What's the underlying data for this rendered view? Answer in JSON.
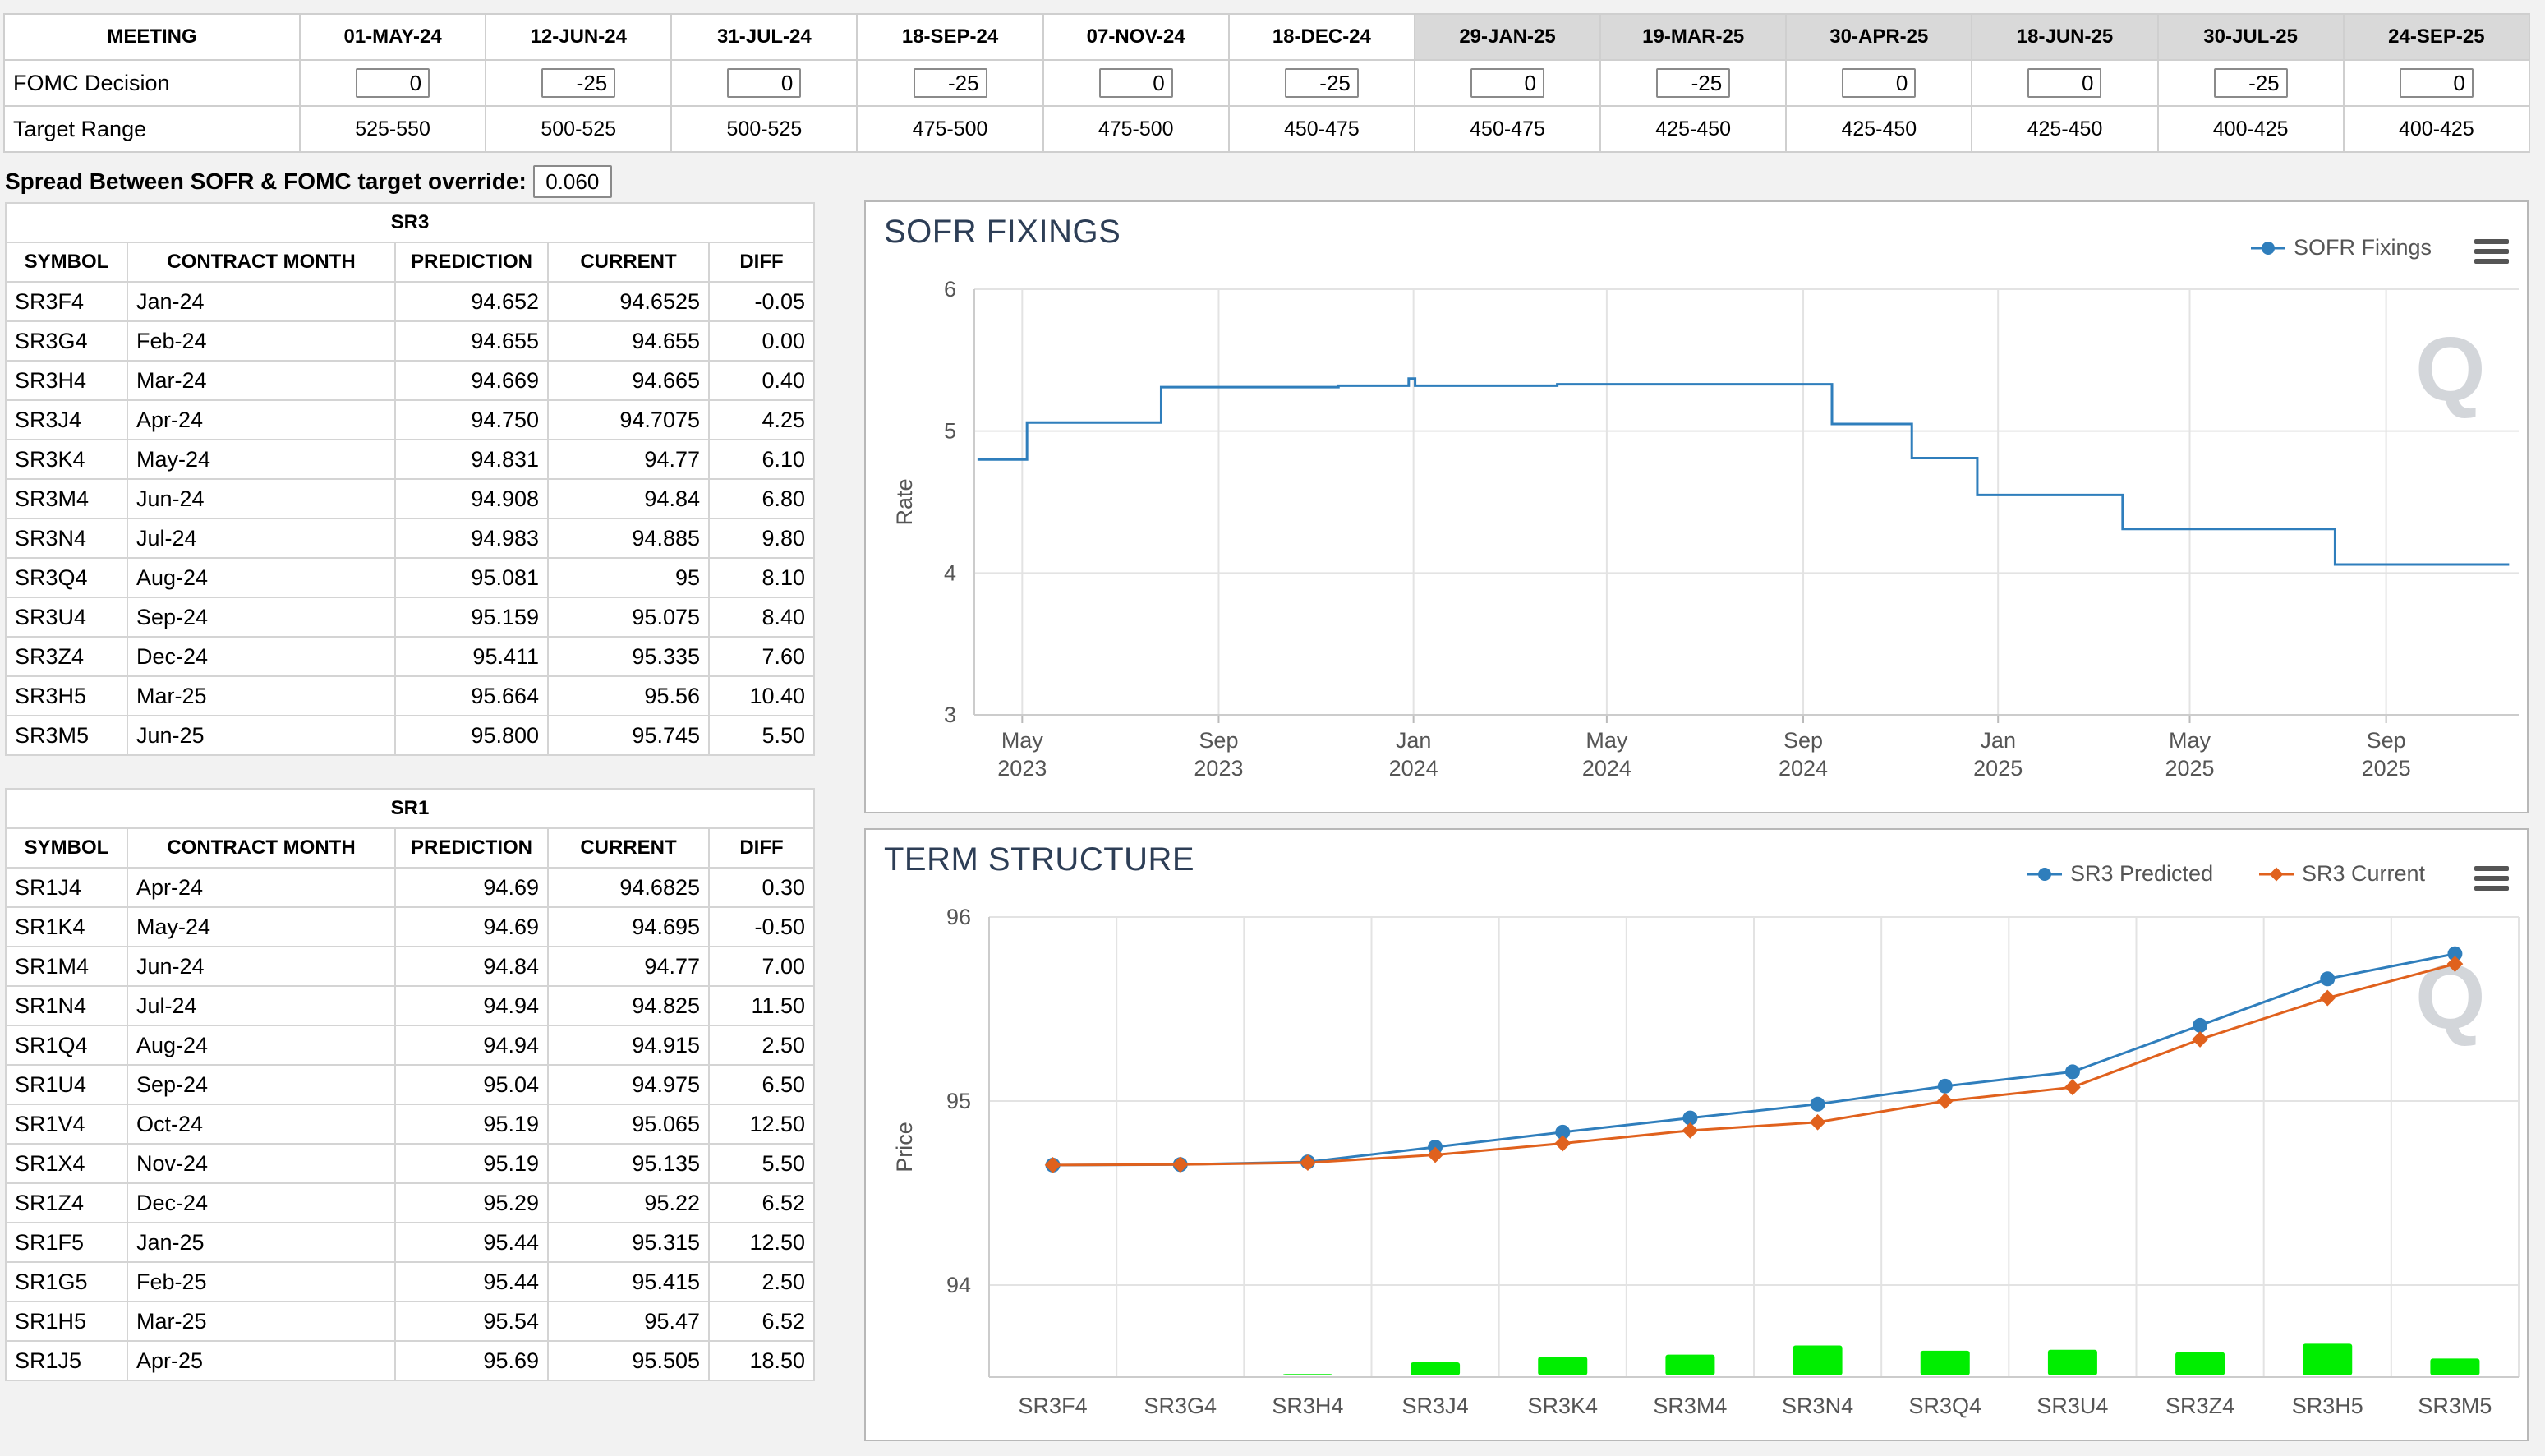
{
  "meetings": {
    "header_label": "MEETING",
    "row_decision_label": "FOMC Decision",
    "row_range_label": "Target Range",
    "columns": [
      {
        "date": "01-MAY-24",
        "decision": "0",
        "range": "525-550",
        "shaded": false
      },
      {
        "date": "12-JUN-24",
        "decision": "-25",
        "range": "500-525",
        "shaded": false
      },
      {
        "date": "31-JUL-24",
        "decision": "0",
        "range": "500-525",
        "shaded": false
      },
      {
        "date": "18-SEP-24",
        "decision": "-25",
        "range": "475-500",
        "shaded": false
      },
      {
        "date": "07-NOV-24",
        "decision": "0",
        "range": "475-500",
        "shaded": false
      },
      {
        "date": "18-DEC-24",
        "decision": "-25",
        "range": "450-475",
        "shaded": false
      },
      {
        "date": "29-JAN-25",
        "decision": "0",
        "range": "450-475",
        "shaded": true
      },
      {
        "date": "19-MAR-25",
        "decision": "-25",
        "range": "425-450",
        "shaded": true
      },
      {
        "date": "30-APR-25",
        "decision": "0",
        "range": "425-450",
        "shaded": true
      },
      {
        "date": "18-JUN-25",
        "decision": "0",
        "range": "425-450",
        "shaded": true
      },
      {
        "date": "30-JUL-25",
        "decision": "-25",
        "range": "400-425",
        "shaded": true
      },
      {
        "date": "24-SEP-25",
        "decision": "0",
        "range": "400-425",
        "shaded": true
      }
    ]
  },
  "spread": {
    "label": "Spread Between SOFR & FOMC target override:",
    "value": "0.060"
  },
  "contract_headers": [
    "SYMBOL",
    "CONTRACT MONTH",
    "PREDICTION",
    "CURRENT",
    "DIFF"
  ],
  "sr3": {
    "title": "SR3",
    "rows": [
      [
        "SR3F4",
        "Jan-24",
        "94.652",
        "94.6525",
        "-0.05"
      ],
      [
        "SR3G4",
        "Feb-24",
        "94.655",
        "94.655",
        "0.00"
      ],
      [
        "SR3H4",
        "Mar-24",
        "94.669",
        "94.665",
        "0.40"
      ],
      [
        "SR3J4",
        "Apr-24",
        "94.750",
        "94.7075",
        "4.25"
      ],
      [
        "SR3K4",
        "May-24",
        "94.831",
        "94.77",
        "6.10"
      ],
      [
        "SR3M4",
        "Jun-24",
        "94.908",
        "94.84",
        "6.80"
      ],
      [
        "SR3N4",
        "Jul-24",
        "94.983",
        "94.885",
        "9.80"
      ],
      [
        "SR3Q4",
        "Aug-24",
        "95.081",
        "95",
        "8.10"
      ],
      [
        "SR3U4",
        "Sep-24",
        "95.159",
        "95.075",
        "8.40"
      ],
      [
        "SR3Z4",
        "Dec-24",
        "95.411",
        "95.335",
        "7.60"
      ],
      [
        "SR3H5",
        "Mar-25",
        "95.664",
        "95.56",
        "10.40"
      ],
      [
        "SR3M5",
        "Jun-25",
        "95.800",
        "95.745",
        "5.50"
      ]
    ]
  },
  "sr1": {
    "title": "SR1",
    "rows": [
      [
        "SR1J4",
        "Apr-24",
        "94.69",
        "94.6825",
        "0.30"
      ],
      [
        "SR1K4",
        "May-24",
        "94.69",
        "94.695",
        "-0.50"
      ],
      [
        "SR1M4",
        "Jun-24",
        "94.84",
        "94.77",
        "7.00"
      ],
      [
        "SR1N4",
        "Jul-24",
        "94.94",
        "94.825",
        "11.50"
      ],
      [
        "SR1Q4",
        "Aug-24",
        "94.94",
        "94.915",
        "2.50"
      ],
      [
        "SR1U4",
        "Sep-24",
        "95.04",
        "94.975",
        "6.50"
      ],
      [
        "SR1V4",
        "Oct-24",
        "95.19",
        "95.065",
        "12.50"
      ],
      [
        "SR1X4",
        "Nov-24",
        "95.19",
        "95.135",
        "5.50"
      ],
      [
        "SR1Z4",
        "Dec-24",
        "95.29",
        "95.22",
        "6.52"
      ],
      [
        "SR1F5",
        "Jan-25",
        "95.44",
        "95.315",
        "12.50"
      ],
      [
        "SR1G5",
        "Feb-25",
        "95.44",
        "95.415",
        "2.50"
      ],
      [
        "SR1H5",
        "Mar-25",
        "95.54",
        "95.47",
        "6.52"
      ],
      [
        "SR1J5",
        "Apr-25",
        "95.69",
        "95.505",
        "18.50"
      ]
    ]
  },
  "icons": {
    "menu": "hamburger-menu-icon",
    "watermark": "Q"
  },
  "colors": {
    "predicted": "#2f7ebc",
    "current": "#e0611d",
    "diff_bar": "#00ee00",
    "title": "#2d3e56"
  },
  "chart_data": [
    {
      "type": "line",
      "title": "SOFR FIXINGS",
      "ylabel": "Rate",
      "xlabel": "",
      "ylim": [
        3,
        6
      ],
      "yticks": [
        3,
        4,
        5,
        6
      ],
      "xlim": [
        "2023-04-01",
        "2025-11-23"
      ],
      "xticks": [
        {
          "date": "2023-05-01",
          "label1": "May",
          "label2": "2023"
        },
        {
          "date": "2023-09-01",
          "label1": "Sep",
          "label2": "2023"
        },
        {
          "date": "2024-01-01",
          "label1": "Jan",
          "label2": "2024"
        },
        {
          "date": "2024-05-01",
          "label1": "May",
          "label2": "2024"
        },
        {
          "date": "2024-09-01",
          "label1": "Sep",
          "label2": "2024"
        },
        {
          "date": "2025-01-01",
          "label1": "Jan",
          "label2": "2025"
        },
        {
          "date": "2025-05-01",
          "label1": "May",
          "label2": "2025"
        },
        {
          "date": "2025-09-01",
          "label1": "Sep",
          "label2": "2025"
        }
      ],
      "grid": true,
      "legend": "top-right",
      "series": [
        {
          "name": "SOFR Fixings",
          "color": "#2f7ebc",
          "step": true,
          "points": [
            [
              "2023-04-03",
              4.8
            ],
            [
              "2023-05-04",
              5.06
            ],
            [
              "2023-06-15",
              5.06
            ],
            [
              "2023-07-27",
              5.31
            ],
            [
              "2023-09-20",
              5.31
            ],
            [
              "2023-11-15",
              5.32
            ],
            [
              "2023-12-29",
              5.37
            ],
            [
              "2024-01-02",
              5.32
            ],
            [
              "2024-03-31",
              5.33
            ],
            [
              "2024-06-28",
              5.33
            ],
            [
              "2024-09-19",
              5.05
            ],
            [
              "2024-11-08",
              4.81
            ],
            [
              "2024-12-19",
              4.55
            ],
            [
              "2025-03-20",
              4.31
            ],
            [
              "2025-07-31",
              4.06
            ],
            [
              "2025-11-17",
              4.06
            ]
          ]
        }
      ]
    },
    {
      "type": "line",
      "title": "TERM STRUCTURE",
      "ylabel": "Price",
      "xlabel": "",
      "ylim": [
        93.5,
        96
      ],
      "yticks": [
        94,
        95,
        96
      ],
      "grid": true,
      "legend": "top-right",
      "categories": [
        "SR3F4",
        "SR3G4",
        "SR3H4",
        "SR3J4",
        "SR3K4",
        "SR3M4",
        "SR3N4",
        "SR3Q4",
        "SR3U4",
        "SR3Z4",
        "SR3H5",
        "SR3M5"
      ],
      "series": [
        {
          "name": "SR3 Predicted",
          "color": "#2f7ebc",
          "marker": "circle",
          "values": [
            94.652,
            94.655,
            94.669,
            94.75,
            94.831,
            94.908,
            94.983,
            95.081,
            95.159,
            95.411,
            95.664,
            95.8
          ]
        },
        {
          "name": "SR3 Current",
          "color": "#e0611d",
          "marker": "diamond",
          "values": [
            94.6525,
            94.655,
            94.665,
            94.7075,
            94.77,
            94.84,
            94.885,
            95.0,
            95.075,
            95.335,
            95.56,
            95.745
          ]
        }
      ],
      "bars": {
        "color": "#00ee00",
        "baseline": 93.51,
        "values": [
          -0.05,
          0.0,
          0.4,
          4.25,
          6.1,
          6.8,
          9.8,
          8.1,
          8.4,
          7.6,
          10.4,
          5.5
        ]
      }
    }
  ]
}
